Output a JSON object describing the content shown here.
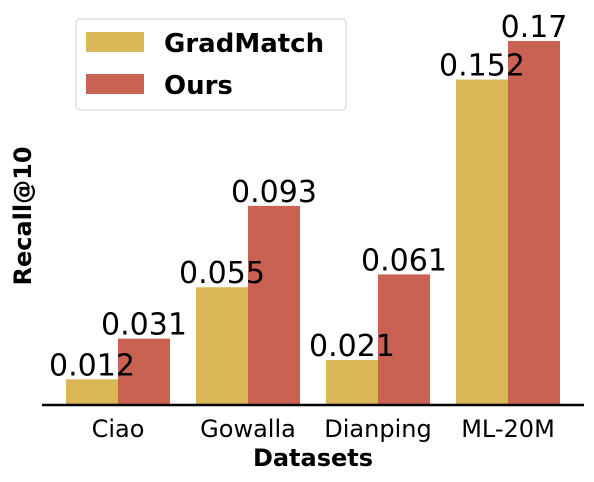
{
  "chart_data": {
    "type": "bar",
    "categories": [
      "Ciao",
      "Gowalla",
      "Dianping",
      "ML-20M"
    ],
    "series": [
      {
        "name": "GradMatch",
        "values": [
          0.012,
          0.055,
          0.021,
          0.152
        ],
        "labels": [
          "0.012",
          "0.055",
          "0.021",
          "0.152"
        ],
        "color": "#DBB657"
      },
      {
        "name": "Ours",
        "values": [
          0.031,
          0.093,
          0.061,
          0.17
        ],
        "labels": [
          "0.031",
          "0.093",
          "0.061",
          "0.17"
        ],
        "color": "#C96253"
      }
    ],
    "xlabel": "Datasets",
    "ylabel": "Recall@10",
    "ylim": [
      0,
      0.17
    ],
    "grid": false,
    "legend": "top-left"
  }
}
